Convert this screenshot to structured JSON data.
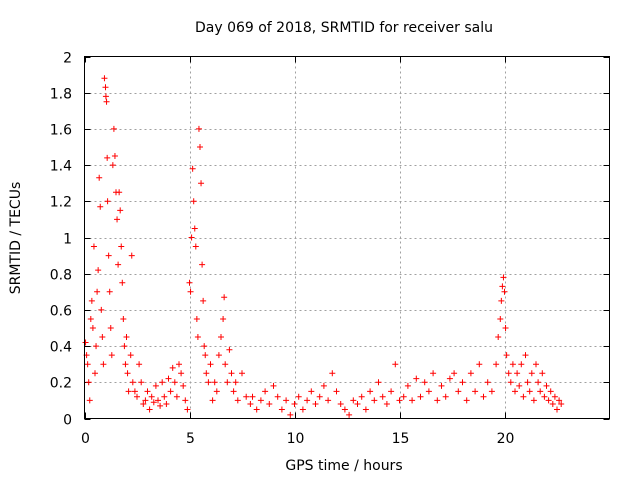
{
  "chart_data": {
    "type": "scatter",
    "title": "Day 069 of 2018, SRMTID for receiver salu",
    "xlabel": "GPS time / hours",
    "ylabel": "SRMTID / TECUs",
    "xlim": [
      0,
      25
    ],
    "ylim": [
      0,
      2
    ],
    "xticks": [
      0,
      5,
      10,
      15,
      20
    ],
    "yticks": [
      0,
      0.2,
      0.4,
      0.6,
      0.8,
      1,
      1.2,
      1.4,
      1.6,
      1.8,
      2
    ],
    "xtick_labels": [
      "0",
      "5",
      "10",
      "15",
      "20"
    ],
    "ytick_labels": [
      "0",
      "0.2",
      "0.4",
      "0.6",
      "0.8",
      "1",
      "1.2",
      "1.4",
      "1.6",
      "1.8",
      "2"
    ],
    "grid": true,
    "marker": "+",
    "series": [
      {
        "name": "SRMTID",
        "color": "#ff0000",
        "points": [
          [
            0.05,
            0.42
          ],
          [
            0.1,
            0.35
          ],
          [
            0.15,
            0.3
          ],
          [
            0.2,
            0.2
          ],
          [
            0.25,
            0.1
          ],
          [
            0.3,
            0.55
          ],
          [
            0.35,
            0.65
          ],
          [
            0.4,
            0.5
          ],
          [
            0.45,
            0.95
          ],
          [
            0.5,
            0.25
          ],
          [
            0.55,
            0.4
          ],
          [
            0.6,
            0.7
          ],
          [
            0.65,
            0.82
          ],
          [
            0.7,
            1.33
          ],
          [
            0.75,
            1.17
          ],
          [
            0.8,
            0.6
          ],
          [
            0.85,
            0.45
          ],
          [
            0.9,
            0.3
          ],
          [
            0.95,
            1.88
          ],
          [
            1.0,
            1.83
          ],
          [
            1.02,
            1.78
          ],
          [
            1.05,
            1.75
          ],
          [
            1.08,
            1.44
          ],
          [
            1.1,
            1.2
          ],
          [
            1.15,
            0.9
          ],
          [
            1.2,
            0.7
          ],
          [
            1.25,
            0.5
          ],
          [
            1.3,
            0.35
          ],
          [
            1.35,
            1.4
          ],
          [
            1.4,
            1.6
          ],
          [
            1.45,
            1.45
          ],
          [
            1.5,
            1.25
          ],
          [
            1.55,
            1.1
          ],
          [
            1.6,
            0.85
          ],
          [
            1.65,
            1.25
          ],
          [
            1.7,
            1.15
          ],
          [
            1.75,
            0.95
          ],
          [
            1.8,
            0.75
          ],
          [
            1.85,
            0.55
          ],
          [
            1.9,
            0.4
          ],
          [
            1.95,
            0.3
          ],
          [
            2.0,
            0.45
          ],
          [
            2.05,
            0.25
          ],
          [
            2.1,
            0.15
          ],
          [
            2.2,
            0.35
          ],
          [
            2.25,
            0.9
          ],
          [
            2.3,
            0.2
          ],
          [
            2.4,
            0.15
          ],
          [
            2.5,
            0.12
          ],
          [
            2.6,
            0.3
          ],
          [
            2.7,
            0.2
          ],
          [
            2.8,
            0.08
          ],
          [
            2.9,
            0.1
          ],
          [
            3.0,
            0.15
          ],
          [
            3.1,
            0.05
          ],
          [
            3.2,
            0.12
          ],
          [
            3.3,
            0.09
          ],
          [
            3.4,
            0.18
          ],
          [
            3.5,
            0.1
          ],
          [
            3.6,
            0.07
          ],
          [
            3.7,
            0.2
          ],
          [
            3.8,
            0.12
          ],
          [
            3.9,
            0.08
          ],
          [
            4.0,
            0.22
          ],
          [
            4.1,
            0.15
          ],
          [
            4.2,
            0.28
          ],
          [
            4.3,
            0.2
          ],
          [
            4.4,
            0.12
          ],
          [
            4.5,
            0.3
          ],
          [
            4.6,
            0.25
          ],
          [
            4.7,
            0.18
          ],
          [
            4.8,
            0.1
          ],
          [
            4.9,
            0.05
          ],
          [
            5.0,
            0.75
          ],
          [
            5.05,
            0.7
          ],
          [
            5.1,
            1.0
          ],
          [
            5.15,
            1.38
          ],
          [
            5.2,
            1.2
          ],
          [
            5.25,
            1.05
          ],
          [
            5.3,
            0.95
          ],
          [
            5.35,
            0.55
          ],
          [
            5.4,
            0.45
          ],
          [
            5.45,
            1.6
          ],
          [
            5.5,
            1.5
          ],
          [
            5.55,
            1.3
          ],
          [
            5.6,
            0.85
          ],
          [
            5.65,
            0.65
          ],
          [
            5.7,
            0.4
          ],
          [
            5.75,
            0.35
          ],
          [
            5.8,
            0.25
          ],
          [
            5.9,
            0.2
          ],
          [
            6.0,
            0.3
          ],
          [
            6.1,
            0.1
          ],
          [
            6.2,
            0.2
          ],
          [
            6.3,
            0.15
          ],
          [
            6.4,
            0.35
          ],
          [
            6.5,
            0.45
          ],
          [
            6.6,
            0.55
          ],
          [
            6.65,
            0.67
          ],
          [
            6.7,
            0.3
          ],
          [
            6.8,
            0.2
          ],
          [
            6.9,
            0.38
          ],
          [
            7.0,
            0.25
          ],
          [
            7.1,
            0.15
          ],
          [
            7.2,
            0.2
          ],
          [
            7.3,
            0.1
          ],
          [
            7.5,
            0.25
          ],
          [
            7.7,
            0.12
          ],
          [
            7.9,
            0.08
          ],
          [
            8.0,
            0.12
          ],
          [
            8.2,
            0.05
          ],
          [
            8.4,
            0.1
          ],
          [
            8.6,
            0.15
          ],
          [
            8.8,
            0.08
          ],
          [
            9.0,
            0.18
          ],
          [
            9.2,
            0.12
          ],
          [
            9.4,
            0.05
          ],
          [
            9.6,
            0.1
          ],
          [
            9.8,
            0.02
          ],
          [
            10.0,
            0.08
          ],
          [
            10.2,
            0.12
          ],
          [
            10.4,
            0.05
          ],
          [
            10.6,
            0.1
          ],
          [
            10.8,
            0.15
          ],
          [
            11.0,
            0.08
          ],
          [
            11.2,
            0.12
          ],
          [
            11.4,
            0.18
          ],
          [
            11.6,
            0.1
          ],
          [
            11.8,
            0.25
          ],
          [
            12.0,
            0.15
          ],
          [
            12.2,
            0.08
          ],
          [
            12.4,
            0.05
          ],
          [
            12.6,
            0.02
          ],
          [
            12.8,
            0.1
          ],
          [
            13.0,
            0.08
          ],
          [
            13.2,
            0.12
          ],
          [
            13.4,
            0.05
          ],
          [
            13.6,
            0.15
          ],
          [
            13.8,
            0.1
          ],
          [
            14.0,
            0.2
          ],
          [
            14.2,
            0.12
          ],
          [
            14.4,
            0.08
          ],
          [
            14.6,
            0.15
          ],
          [
            14.8,
            0.3
          ],
          [
            15.0,
            0.1
          ],
          [
            15.2,
            0.12
          ],
          [
            15.4,
            0.18
          ],
          [
            15.6,
            0.1
          ],
          [
            15.8,
            0.22
          ],
          [
            16.0,
            0.12
          ],
          [
            16.2,
            0.2
          ],
          [
            16.4,
            0.15
          ],
          [
            16.6,
            0.25
          ],
          [
            16.8,
            0.1
          ],
          [
            17.0,
            0.18
          ],
          [
            17.2,
            0.12
          ],
          [
            17.4,
            0.22
          ],
          [
            17.6,
            0.25
          ],
          [
            17.8,
            0.15
          ],
          [
            18.0,
            0.2
          ],
          [
            18.2,
            0.1
          ],
          [
            18.4,
            0.25
          ],
          [
            18.6,
            0.15
          ],
          [
            18.8,
            0.3
          ],
          [
            19.0,
            0.12
          ],
          [
            19.2,
            0.2
          ],
          [
            19.4,
            0.15
          ],
          [
            19.6,
            0.3
          ],
          [
            19.7,
            0.45
          ],
          [
            19.8,
            0.55
          ],
          [
            19.85,
            0.65
          ],
          [
            19.9,
            0.73
          ],
          [
            19.95,
            0.78
          ],
          [
            20.0,
            0.7
          ],
          [
            20.05,
            0.5
          ],
          [
            20.1,
            0.35
          ],
          [
            20.2,
            0.25
          ],
          [
            20.3,
            0.2
          ],
          [
            20.4,
            0.3
          ],
          [
            20.5,
            0.15
          ],
          [
            20.6,
            0.25
          ],
          [
            20.7,
            0.18
          ],
          [
            20.8,
            0.3
          ],
          [
            20.9,
            0.12
          ],
          [
            21.0,
            0.35
          ],
          [
            21.1,
            0.2
          ],
          [
            21.2,
            0.15
          ],
          [
            21.3,
            0.25
          ],
          [
            21.4,
            0.1
          ],
          [
            21.5,
            0.3
          ],
          [
            21.6,
            0.2
          ],
          [
            21.7,
            0.15
          ],
          [
            21.8,
            0.25
          ],
          [
            21.9,
            0.12
          ],
          [
            22.0,
            0.18
          ],
          [
            22.1,
            0.1
          ],
          [
            22.2,
            0.15
          ],
          [
            22.3,
            0.08
          ],
          [
            22.4,
            0.12
          ],
          [
            22.5,
            0.05
          ],
          [
            22.6,
            0.1
          ],
          [
            22.7,
            0.08
          ]
        ]
      }
    ]
  }
}
